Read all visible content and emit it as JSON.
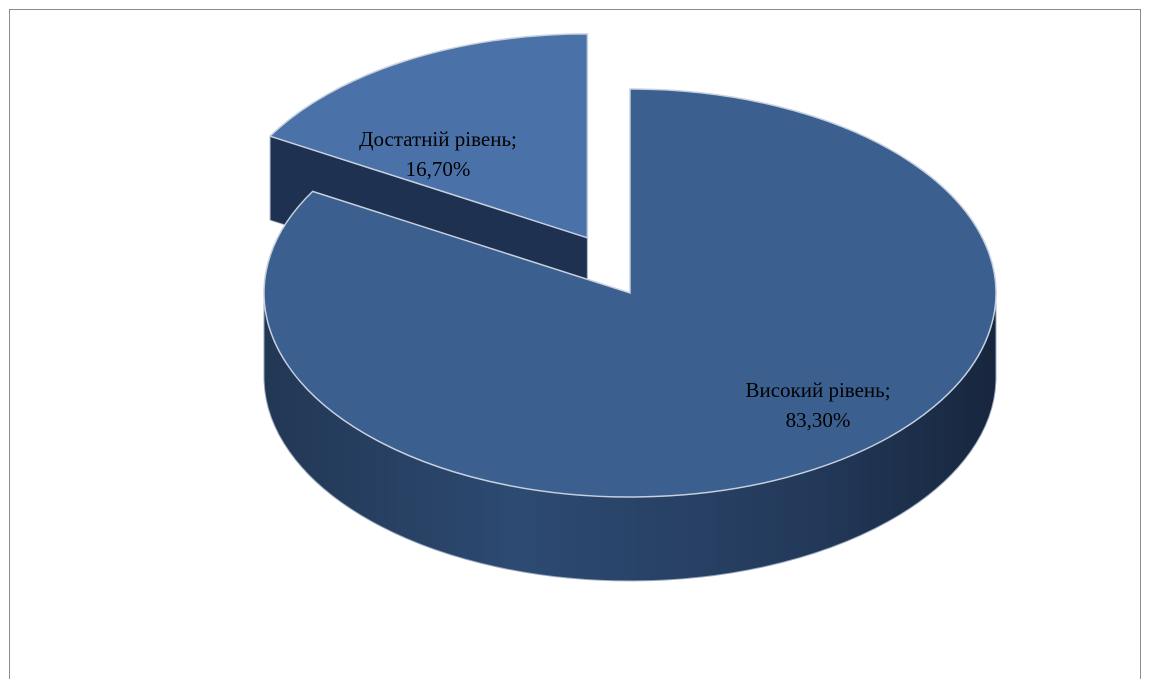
{
  "chart_data": {
    "type": "pie",
    "style": "3d-exploded",
    "slices": [
      {
        "name": "Високий рівень",
        "value": 83.3,
        "label_line1": "Високий рівень;",
        "label_line2": "83,30%",
        "color": "#3b5f8f"
      },
      {
        "name": "Достатній рівень",
        "value": 16.7,
        "label_line1": "Достатній рівень;",
        "label_line2": "16,70%",
        "color": "#4a72a8"
      }
    ]
  }
}
